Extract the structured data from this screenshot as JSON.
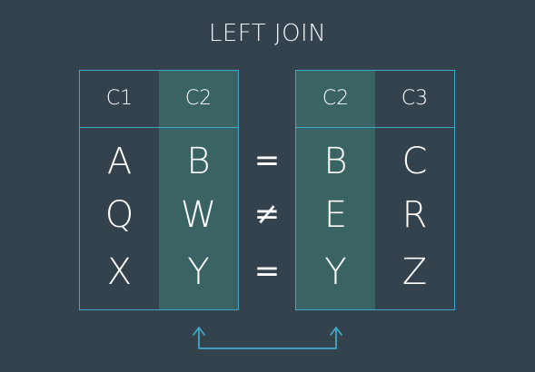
{
  "title": "LEFT JOIN",
  "colors": {
    "background": "#34424e",
    "border": "#3fa8c9",
    "highlight": "#3a6363"
  },
  "left_table": {
    "headers": [
      "C1",
      "C2"
    ],
    "rows": [
      [
        "A",
        "B"
      ],
      [
        "Q",
        "W"
      ],
      [
        "X",
        "Y"
      ]
    ],
    "highlight_column": 1
  },
  "operators": [
    "=",
    "≠",
    "="
  ],
  "right_table": {
    "headers": [
      "C2",
      "C3"
    ],
    "rows": [
      [
        "B",
        "C"
      ],
      [
        "E",
        "R"
      ],
      [
        "Y",
        "Z"
      ]
    ],
    "highlight_column": 0
  },
  "connector": {
    "from": "left_table.C2",
    "to": "right_table.C2",
    "icon": "join-arrow-icon"
  }
}
